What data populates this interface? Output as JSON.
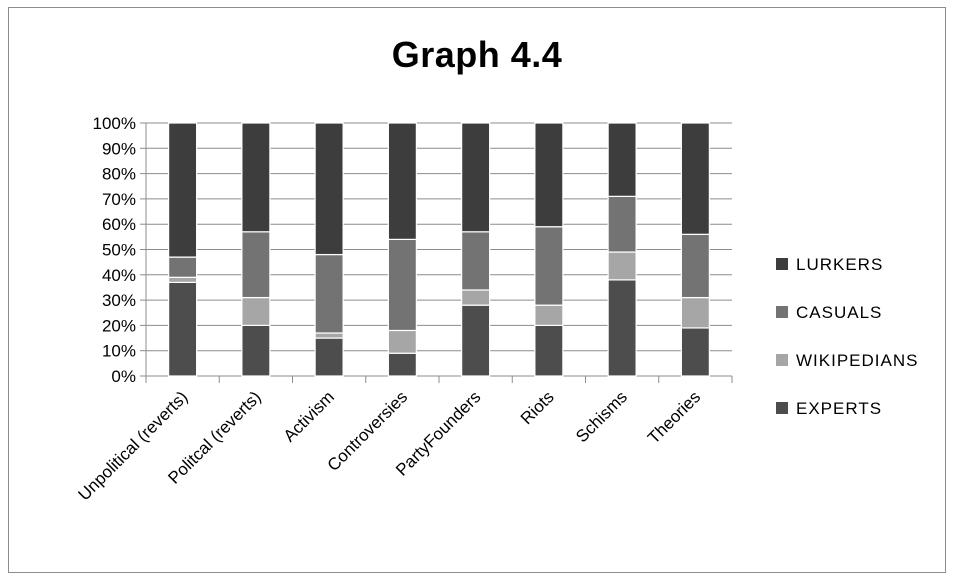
{
  "chart_data": {
    "type": "bar",
    "stacked": true,
    "normalized": true,
    "title": "Graph 4.4",
    "categories": [
      "Unpolitical (reverts)",
      "Politcal (reverts)",
      "Activism",
      "Controversies",
      "PartyFounders",
      "Riots",
      "Schisms",
      "Theories"
    ],
    "series": [
      {
        "name": "EXPERTS",
        "color": "#4d4d4d",
        "values": [
          37,
          20,
          15,
          9,
          28,
          20,
          38,
          19
        ]
      },
      {
        "name": "WIKIPEDIANS",
        "color": "#a6a6a6",
        "values": [
          2,
          11,
          2,
          9,
          6,
          8,
          11,
          12
        ]
      },
      {
        "name": "CASUALS",
        "color": "#737373",
        "values": [
          8,
          26,
          31,
          36,
          23,
          31,
          22,
          25
        ]
      },
      {
        "name": "LURKERS",
        "color": "#3d3d3d",
        "values": [
          53,
          43,
          52,
          46,
          43,
          41,
          29,
          44
        ]
      }
    ],
    "yticks": [
      "0%",
      "10%",
      "20%",
      "30%",
      "40%",
      "50%",
      "60%",
      "70%",
      "80%",
      "90%",
      "100%"
    ],
    "ylim": [
      0,
      100
    ],
    "grid": true,
    "legend": "right"
  }
}
